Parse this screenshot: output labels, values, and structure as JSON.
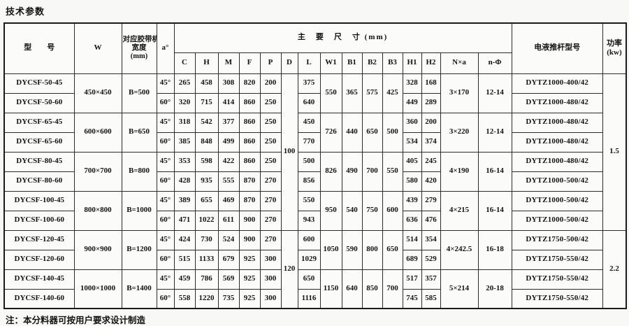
{
  "page": {
    "title": "技术参数",
    "note": "注：本分料器可按用户要求设计制造"
  },
  "table": {
    "header": {
      "model": "型　　号",
      "w": "W",
      "belt_lines": [
        "对应胶带机",
        "宽度",
        "(mm)"
      ],
      "angle": "a°",
      "dims_title": "主　要　尺　寸 (mm)",
      "dims": [
        "C",
        "H",
        "M",
        "F",
        "P",
        "D",
        "L",
        "W1",
        "B1",
        "B2",
        "B3",
        "H1",
        "H2",
        "N×a",
        "n-Φ"
      ],
      "pusher": "电液推杆型号",
      "power_lines": [
        "功率",
        "(kw)"
      ]
    },
    "columns": [
      {
        "key": "model",
        "span": 1
      },
      {
        "key": "w",
        "span": 2
      },
      {
        "key": "belt",
        "span": 2
      },
      {
        "key": "angle",
        "span": 1
      },
      {
        "key": "c",
        "span": 1
      },
      {
        "key": "h",
        "span": 1
      },
      {
        "key": "m",
        "span": 1
      },
      {
        "key": "f",
        "span": 1
      },
      {
        "key": "p",
        "span": 1
      },
      {
        "key": "d",
        "span": "group"
      },
      {
        "key": "l",
        "span": 1
      },
      {
        "key": "w1",
        "span": 2
      },
      {
        "key": "b1",
        "span": 2
      },
      {
        "key": "b2",
        "span": 2
      },
      {
        "key": "b3",
        "span": 2
      },
      {
        "key": "h1",
        "span": 1
      },
      {
        "key": "h2",
        "span": 1
      },
      {
        "key": "nxa",
        "span": 2
      },
      {
        "key": "nphi",
        "span": 2
      },
      {
        "key": "pusher",
        "span": 1
      },
      {
        "key": "power",
        "span": "group"
      }
    ],
    "group_spans": {
      "0": 8,
      "8": 4
    },
    "rows": [
      {
        "model": "DYCSF-50-45",
        "w": "450×450",
        "belt": "B=500",
        "angle": "45°",
        "c": "265",
        "h": "458",
        "m": "308",
        "f": "820",
        "p": "200",
        "d": "100",
        "l": "375",
        "w1": "550",
        "b1": "365",
        "b2": "575",
        "b3": "425",
        "h1": "328",
        "h2": "168",
        "nxa": "3×170",
        "nphi": "12-14",
        "pusher": "DYTZ1000-400/42",
        "power": "1.5"
      },
      {
        "model": "DYCSF-50-60",
        "angle": "60°",
        "c": "320",
        "h": "715",
        "m": "414",
        "f": "860",
        "p": "250",
        "l": "640",
        "h1": "449",
        "h2": "289",
        "pusher": "DYTZ1000-480/42"
      },
      {
        "model": "DYCSF-65-45",
        "w": "600×600",
        "belt": "B=650",
        "angle": "45°",
        "c": "318",
        "h": "542",
        "m": "377",
        "f": "860",
        "p": "250",
        "l": "450",
        "w1": "726",
        "b1": "440",
        "b2": "650",
        "b3": "500",
        "h1": "360",
        "h2": "200",
        "nxa": "3×220",
        "nphi": "12-14",
        "pusher": "DYTZ1000-480/42"
      },
      {
        "model": "DYCSF-65-60",
        "angle": "60°",
        "c": "385",
        "h": "848",
        "m": "499",
        "f": "860",
        "p": "250",
        "l": "770",
        "h1": "534",
        "h2": "374",
        "pusher": "DYTZ1000-480/42"
      },
      {
        "model": "DYCSF-80-45",
        "w": "700×700",
        "belt": "B=800",
        "angle": "45°",
        "c": "353",
        "h": "598",
        "m": "422",
        "f": "860",
        "p": "250",
        "l": "500",
        "w1": "826",
        "b1": "490",
        "b2": "700",
        "b3": "550",
        "h1": "405",
        "h2": "245",
        "nxa": "4×190",
        "nphi": "16-14",
        "pusher": "DYTZ1000-480/42"
      },
      {
        "model": "DYCSF-80-60",
        "angle": "60°",
        "c": "428",
        "h": "935",
        "m": "555",
        "f": "870",
        "p": "270",
        "l": "856",
        "h1": "580",
        "h2": "420",
        "pusher": "DYTZ1000-500/42"
      },
      {
        "model": "DYCSF-100-45",
        "w": "800×800",
        "belt": "B=1000",
        "angle": "45°",
        "c": "389",
        "h": "655",
        "m": "469",
        "f": "870",
        "p": "270",
        "l": "550",
        "w1": "950",
        "b1": "540",
        "b2": "750",
        "b3": "600",
        "h1": "439",
        "h2": "279",
        "nxa": "4×215",
        "nphi": "16-14",
        "pusher": "DYTZ1000-500/42"
      },
      {
        "model": "DYCSF-100-60",
        "angle": "60°",
        "c": "471",
        "h": "1022",
        "m": "611",
        "f": "900",
        "p": "270",
        "l": "943",
        "h1": "636",
        "h2": "476",
        "pusher": "DYTZ1000-500/42"
      },
      {
        "model": "DYCSF-120-45",
        "w": "900×900",
        "belt": "B=1200",
        "angle": "45°",
        "c": "424",
        "h": "730",
        "m": "524",
        "f": "900",
        "p": "270",
        "d": "120",
        "l": "600",
        "w1": "1050",
        "b1": "590",
        "b2": "800",
        "b3": "650",
        "h1": "514",
        "h2": "354",
        "nxa": "4×242.5",
        "nphi": "16-18",
        "pusher": "DYTZ1750-500/42",
        "power": "2.2"
      },
      {
        "model": "DYCSF-120-60",
        "angle": "60°",
        "c": "515",
        "h": "1133",
        "m": "679",
        "f": "925",
        "p": "300",
        "l": "1029",
        "h1": "689",
        "h2": "529",
        "pusher": "DYTZ1750-550/42"
      },
      {
        "model": "DYCSF-140-45",
        "w": "1000×1000",
        "belt": "B=1400",
        "angle": "45°",
        "c": "459",
        "h": "786",
        "m": "569",
        "f": "925",
        "p": "300",
        "l": "650",
        "w1": "1150",
        "b1": "640",
        "b2": "850",
        "b3": "700",
        "h1": "517",
        "h2": "357",
        "nxa": "5×214",
        "nphi": "20-18",
        "pusher": "DYTZ1750-550/42"
      },
      {
        "model": "DYCSF-140-60",
        "angle": "60°",
        "c": "558",
        "h": "1220",
        "m": "735",
        "f": "925",
        "p": "300",
        "l": "1116",
        "h1": "745",
        "h2": "585",
        "pusher": "DYTZ1750-550/42"
      }
    ]
  }
}
